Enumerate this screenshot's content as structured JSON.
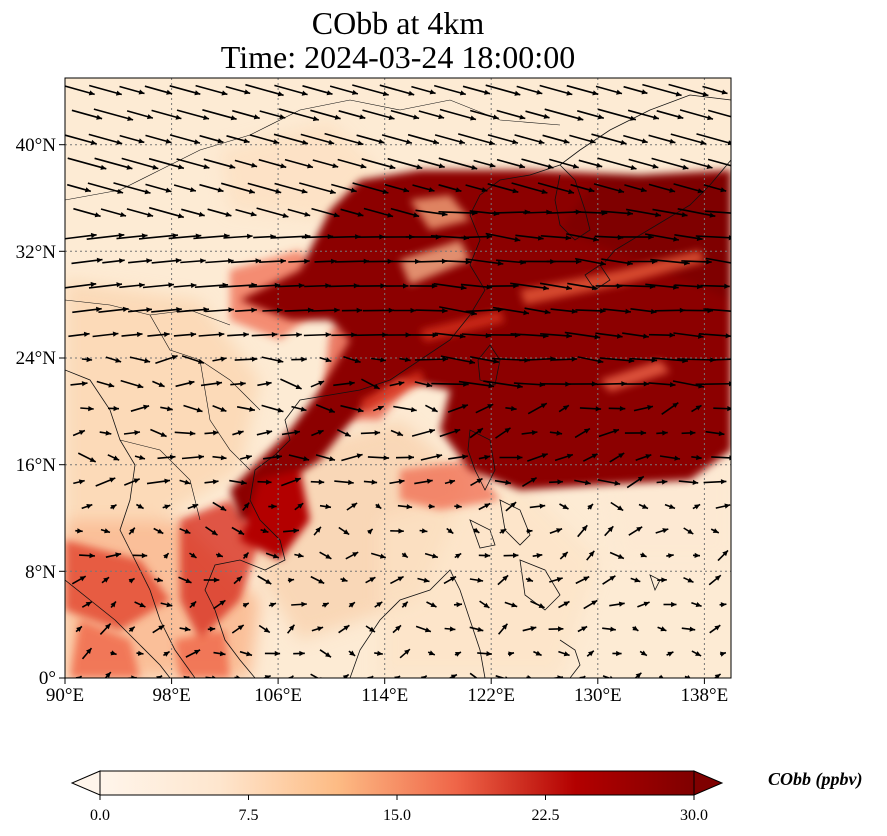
{
  "title": {
    "line1": "CObb at 4km",
    "line2": "Time: 2024-03-24 18:00:00"
  },
  "map": {
    "variable": "CObb",
    "level": "4km",
    "lon_range": [
      90,
      140
    ],
    "lat_range": [
      0,
      45
    ],
    "lon_ticks": [
      "90°E",
      "98°E",
      "106°E",
      "114°E",
      "122°E",
      "130°E",
      "138°E"
    ],
    "lat_ticks": [
      "0°",
      "8°N",
      "16°N",
      "24°N",
      "32°N",
      "40°N"
    ],
    "gridlines": true,
    "overlay": "wind vectors (arrows)"
  },
  "colorbar": {
    "label": "CObb (ppbv)",
    "min": 0.0,
    "max": 30.0,
    "ticks": [
      "0.0",
      "7.5",
      "15.0",
      "22.5",
      "30.0"
    ],
    "extend": "both",
    "colormap": [
      "#fff5eb",
      "#fdd9b3",
      "#fdae6b",
      "#f16913",
      "#d94801",
      "#a50f15",
      "#7f0000"
    ]
  }
}
